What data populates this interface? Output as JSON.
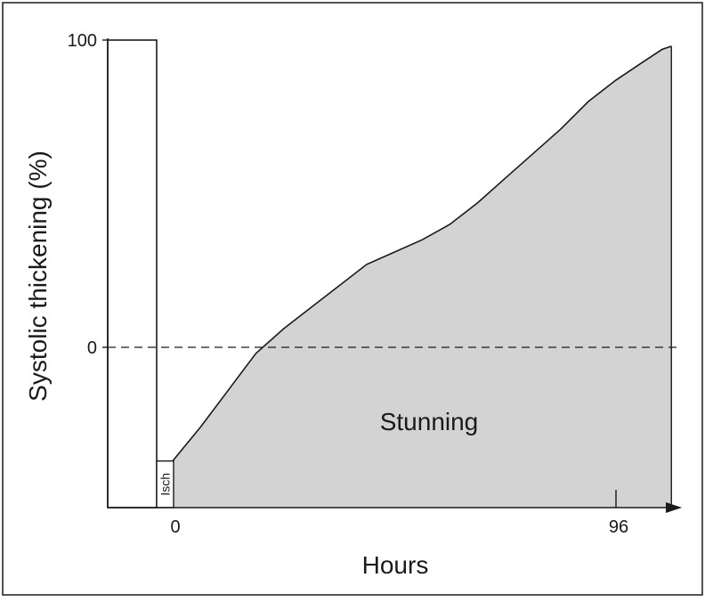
{
  "chart_data": {
    "type": "area",
    "xlabel": "Hours",
    "ylabel": "Systolic thickening (%)",
    "x_ticks": [
      "0",
      "96"
    ],
    "y_ticks": [
      "100",
      "0"
    ],
    "annotations": {
      "area_label": "Stunning",
      "ischemia_label": "Isch"
    },
    "baseline_bar": {
      "value": 100
    },
    "reference_line": {
      "y": 0,
      "style": "dashed"
    },
    "series": [
      {
        "x": [
          0,
          6,
          12,
          18,
          24,
          30,
          36,
          42,
          48,
          54,
          60,
          66,
          72,
          78,
          84,
          90,
          96,
          102,
          106,
          108
        ],
        "y": [
          -37,
          -26,
          -14,
          -2,
          6,
          13,
          20,
          27,
          31,
          35,
          40,
          47,
          55,
          63,
          71,
          80,
          87,
          93,
          97,
          98
        ]
      }
    ],
    "fill_color": "#d3d3d3",
    "line_color": "#1a1a1a"
  }
}
